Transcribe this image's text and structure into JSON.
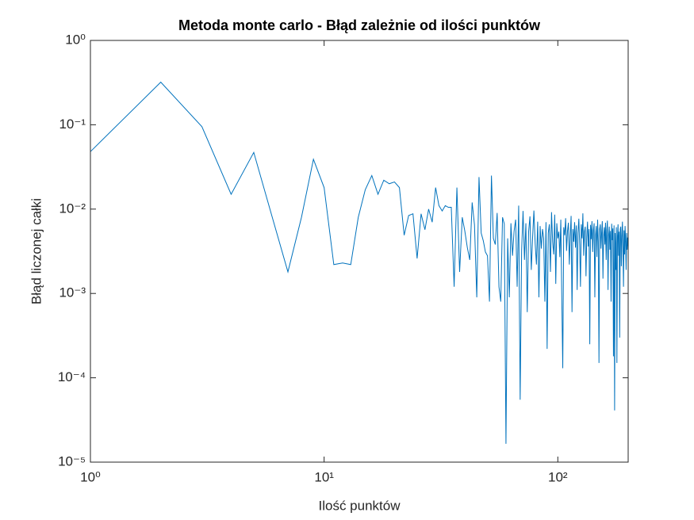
{
  "chart_data": {
    "type": "line",
    "title": "Metoda monte carlo - Błąd zależnie od ilości punktów",
    "xlabel": "Ilość punktów",
    "ylabel": "Błąd liczonej całki",
    "xscale": "log",
    "yscale": "log",
    "grid": false,
    "xlim": [
      1,
      200
    ],
    "ylim": [
      1e-05,
      1
    ],
    "xticks": [
      {
        "value": 1,
        "label": "10⁰"
      },
      {
        "value": 10,
        "label": "10¹"
      },
      {
        "value": 100,
        "label": "10²"
      }
    ],
    "yticks": [
      {
        "value": 1e-05,
        "label": "10⁻⁵"
      },
      {
        "value": 0.0001,
        "label": "10⁻⁴"
      },
      {
        "value": 0.001,
        "label": "10⁻³"
      },
      {
        "value": 0.01,
        "label": "10⁻²"
      },
      {
        "value": 0.1,
        "label": "10⁻¹"
      },
      {
        "value": 1,
        "label": "10⁰"
      }
    ],
    "x": [
      1,
      2,
      3,
      4,
      5,
      6,
      7,
      8,
      9,
      10,
      11,
      12,
      13,
      14,
      15,
      16,
      17,
      18,
      19,
      20,
      21,
      22,
      23,
      24,
      25,
      26,
      27,
      28,
      29,
      30,
      31,
      32,
      33,
      34,
      35,
      36,
      37,
      38,
      39,
      40,
      41,
      42,
      43,
      44,
      45,
      46,
      47,
      48,
      49,
      50,
      51,
      52,
      53,
      54,
      55,
      56,
      57,
      58,
      59,
      60,
      61,
      62,
      63,
      64,
      65,
      66,
      67,
      68,
      69,
      70,
      71,
      72,
      73,
      74,
      75,
      76,
      77,
      78,
      79,
      80,
      81,
      82,
      83,
      84,
      85,
      86,
      87,
      88,
      89,
      90,
      91,
      92,
      93,
      94,
      95,
      96,
      97,
      98,
      99,
      100,
      101,
      102,
      103,
      104,
      105,
      106,
      107,
      108,
      109,
      110,
      111,
      112,
      113,
      114,
      115,
      116,
      117,
      118,
      119,
      120,
      121,
      122,
      123,
      124,
      125,
      126,
      127,
      128,
      129,
      130,
      131,
      132,
      133,
      134,
      135,
      136,
      137,
      138,
      139,
      140,
      141,
      142,
      143,
      144,
      145,
      146,
      147,
      148,
      149,
      150,
      151,
      152,
      153,
      154,
      155,
      156,
      157,
      158,
      159,
      160,
      161,
      162,
      163,
      164,
      165,
      166,
      167,
      168,
      169,
      170,
      171,
      172,
      173,
      174,
      175,
      176,
      177,
      178,
      179,
      180,
      181,
      182,
      183,
      184,
      185,
      186,
      187,
      188,
      189,
      190,
      191,
      192,
      193,
      194,
      195,
      196,
      197,
      198,
      199,
      200
    ],
    "series": [
      {
        "color": "#0072BD",
        "values": [
          0.048,
          0.32,
          0.095,
          0.015,
          0.047,
          0.008,
          0.0018,
          0.008,
          0.039,
          0.018,
          0.0022,
          0.0023,
          0.0022,
          0.008,
          0.017,
          0.025,
          0.015,
          0.022,
          0.02,
          0.021,
          0.018,
          0.0049,
          0.0084,
          0.0088,
          0.0026,
          0.0088,
          0.0057,
          0.01,
          0.007,
          0.018,
          0.011,
          0.0095,
          0.011,
          0.0105,
          0.0105,
          0.0012,
          0.018,
          0.0018,
          0.008,
          0.0055,
          0.0035,
          0.0025,
          0.012,
          0.0065,
          0.0009,
          0.024,
          0.0052,
          0.0042,
          0.0031,
          0.0028,
          0.0008,
          0.025,
          0.0045,
          0.0038,
          0.009,
          0.0012,
          0.0008,
          0.008,
          0.0067,
          1.65e-05,
          0.0045,
          0.0009,
          0.0068,
          0.0028,
          0.0055,
          0.0075,
          0.0012,
          0.011,
          5.5e-05,
          0.0032,
          0.0095,
          0.0025,
          0.0068,
          0.0006,
          0.0054,
          0.0082,
          0.0019,
          0.0046,
          0.0096,
          0.0039,
          0.0022,
          0.0071,
          0.0009,
          0.0063,
          0.0034,
          0.0058,
          0.0045,
          0.0008,
          0.007,
          0.00022,
          0.0052,
          0.0066,
          0.0018,
          0.0092,
          0.0041,
          0.0029,
          0.0086,
          0.0013,
          0.0068,
          0.0045,
          0.0054,
          0.0027,
          0.0075,
          0.0009,
          0.00013,
          0.0061,
          0.0049,
          0.0078,
          0.0032,
          0.0055,
          0.0069,
          0.0022,
          0.0048,
          0.0083,
          0.0006,
          0.0058,
          0.0041,
          0.007,
          0.0035,
          0.0064,
          0.0011,
          0.0052,
          0.0077,
          0.0038,
          0.0012,
          0.0066,
          0.0045,
          0.0089,
          0.0028,
          0.0054,
          0.0062,
          0.0016,
          0.0047,
          0.0071,
          0.0036,
          0.0058,
          0.00025,
          0.0065,
          0.0044,
          0.0072,
          0.0031,
          0.0056,
          0.0068,
          0.0009,
          0.0049,
          0.0063,
          0.0027,
          0.0075,
          0.0041,
          0.00015,
          0.0058,
          0.0066,
          0.0034,
          0.0052,
          0.0072,
          0.0015,
          0.0047,
          0.0061,
          0.0038,
          0.0069,
          0.0025,
          0.0057,
          0.0073,
          0.0011,
          0.0049,
          0.0062,
          0.0033,
          0.0055,
          0.0008,
          0.0067,
          0.0043,
          0.0059,
          0.00018,
          0.0064,
          4.1e-05,
          0.0052,
          0.0019,
          0.0061,
          0.00015,
          0.0048,
          0.0066,
          0.0028,
          0.0054,
          0.0003,
          0.0058,
          0.0062,
          0.0021,
          0.0047,
          0.0071,
          0.0035,
          0.0012,
          0.0056,
          0.0029,
          0.0063,
          0.0041,
          0.0019,
          0.0052,
          0.0033,
          0.0046,
          0.0036
        ]
      }
    ]
  }
}
